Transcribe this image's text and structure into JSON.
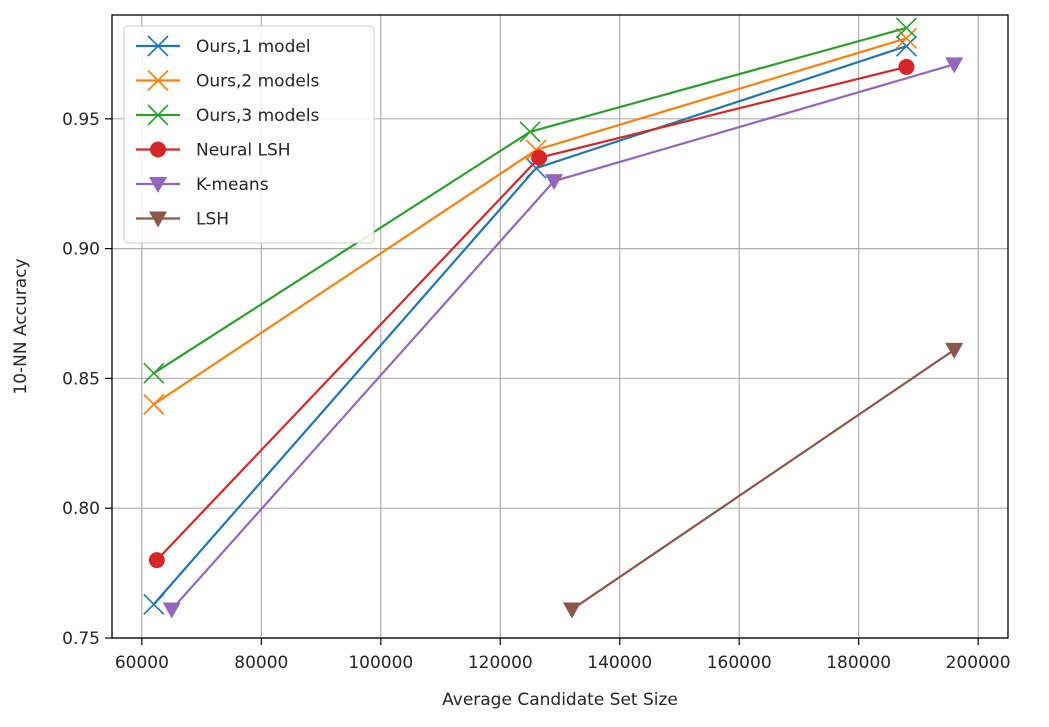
{
  "chart_data": {
    "type": "line",
    "title": "",
    "xlabel": "Average Candidate Set Size",
    "ylabel": "10-NN Accuracy",
    "xlim": [
      55000,
      205000
    ],
    "ylim": [
      0.75,
      0.99
    ],
    "x_ticks": [
      60000,
      80000,
      100000,
      120000,
      140000,
      160000,
      180000,
      200000
    ],
    "x_tick_labels": [
      "60000",
      "80000",
      "100000",
      "120000",
      "140000",
      "160000",
      "180000",
      "200000"
    ],
    "y_ticks": [
      0.75,
      0.8,
      0.85,
      0.9,
      0.95
    ],
    "y_tick_labels": [
      "0.75",
      "0.80",
      "0.85",
      "0.90",
      "0.95"
    ],
    "grid": true,
    "legend_position": "top-left",
    "series": [
      {
        "name": "Ours,1 model",
        "color": "#1f77b4",
        "marker": "x",
        "x": [
          62000,
          126000,
          188000
        ],
        "y": [
          0.763,
          0.931,
          0.978
        ]
      },
      {
        "name": "Ours,2 models",
        "color": "#ff7f0e",
        "marker": "x",
        "x": [
          62000,
          126000,
          188000
        ],
        "y": [
          0.84,
          0.938,
          0.981
        ]
      },
      {
        "name": "Ours,3 models",
        "color": "#2ca02c",
        "marker": "x",
        "x": [
          62000,
          125000,
          188000
        ],
        "y": [
          0.852,
          0.945,
          0.985
        ]
      },
      {
        "name": "Neural LSH",
        "color": "#d62728",
        "marker": "circle",
        "x": [
          62500,
          126500,
          188000
        ],
        "y": [
          0.78,
          0.935,
          0.97
        ]
      },
      {
        "name": "K-means",
        "color": "#9467bd",
        "marker": "triangle-down",
        "x": [
          65000,
          129000,
          196000
        ],
        "y": [
          0.761,
          0.926,
          0.971
        ]
      },
      {
        "name": "LSH",
        "color": "#8c564b",
        "marker": "triangle-down",
        "x": [
          132000,
          196000
        ],
        "y": [
          0.761,
          0.861
        ]
      }
    ]
  }
}
